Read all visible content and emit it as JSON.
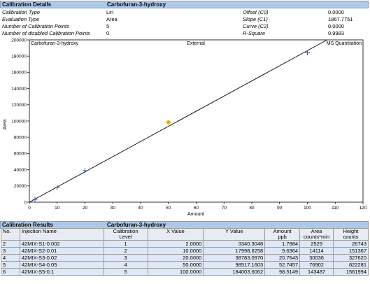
{
  "details": {
    "header": "Calibration Details",
    "compound": "Carbofuran-3-hydroxy",
    "left": [
      {
        "label": "Calibration Type",
        "value": "Lin"
      },
      {
        "label": "Evaluation Type",
        "value": "Area"
      },
      {
        "label": "Number of Calibration Points",
        "value": "5"
      },
      {
        "label": "Number of disabled Calibration Points",
        "value": "0"
      }
    ],
    "right": [
      {
        "label": "Offset (C0)",
        "value": "0.0000"
      },
      {
        "label": "Slope (C1)",
        "value": "1867.7751"
      },
      {
        "label": "Curve (C2)",
        "value": "0.0000"
      },
      {
        "label": "R-Square",
        "value": "0.9983"
      }
    ]
  },
  "chart_data": {
    "type": "scatter",
    "title": "Carbofuran-3-hydroxy",
    "center_label": "External",
    "corner_label": "MS Quantitation",
    "xlabel": "Amount",
    "ylabel": "Area",
    "xlim": [
      0,
      120
    ],
    "ylim": [
      0,
      200000
    ],
    "x_ticks": [
      "0",
      "10",
      "20",
      "30",
      "40",
      "50",
      "60",
      "70",
      "80",
      "90",
      "100",
      "110",
      "120"
    ],
    "y_ticks": [
      "0",
      "20000",
      "40000",
      "60000",
      "80000",
      "100000",
      "120000",
      "140000",
      "160000",
      "180000",
      "200000"
    ],
    "fit_line": {
      "offset": 0,
      "slope": 1867.7751
    },
    "points": [
      {
        "x": 2,
        "y": 3340.3048,
        "marker": "plus"
      },
      {
        "x": 10,
        "y": 17998.6258,
        "marker": "plus"
      },
      {
        "x": 20,
        "y": 38783.097,
        "marker": "plus"
      },
      {
        "x": 50,
        "y": 98517.1603,
        "marker": "diamond"
      },
      {
        "x": 100,
        "y": 184003.6062,
        "marker": "plus"
      }
    ],
    "colors": {
      "plus": "#1f5fbf",
      "diamond": "#f5a800",
      "line": "#000000"
    }
  },
  "results": {
    "header": "Calibration Results",
    "compound": "Carbofuran-3-hydroxy",
    "columns": [
      [
        "No."
      ],
      [
        "Injection Name"
      ],
      [
        "Calibration",
        "Level"
      ],
      [
        "X Value"
      ],
      [
        "Y Value"
      ],
      [
        "Amount",
        "ppb"
      ],
      [
        "Area",
        "counts*min"
      ],
      [
        "Height",
        "counts"
      ]
    ],
    "rows": [
      [
        "2",
        "42MIX-S1-0.002",
        "1",
        "2.0000",
        "3340.3048",
        "1.7884",
        "2529",
        "26743"
      ],
      [
        "3",
        "42MIX-S2-0.01",
        "2",
        "10.0000",
        "17998.6258",
        "9.6364",
        "14114",
        "151367"
      ],
      [
        "4",
        "42MIX-S3-0.02",
        "3",
        "20.0000",
        "38783.0970",
        "20.7643",
        "30036",
        "327620"
      ],
      [
        "5",
        "42MIX-S4-0.05",
        "4",
        "50.0000",
        "98517.1603",
        "52.7457",
        "76902",
        "822281"
      ],
      [
        "6",
        "42MIX-S5-0.1",
        "5",
        "100.0000",
        "184003.6062",
        "98.5149",
        "143487",
        "1561994"
      ]
    ]
  }
}
